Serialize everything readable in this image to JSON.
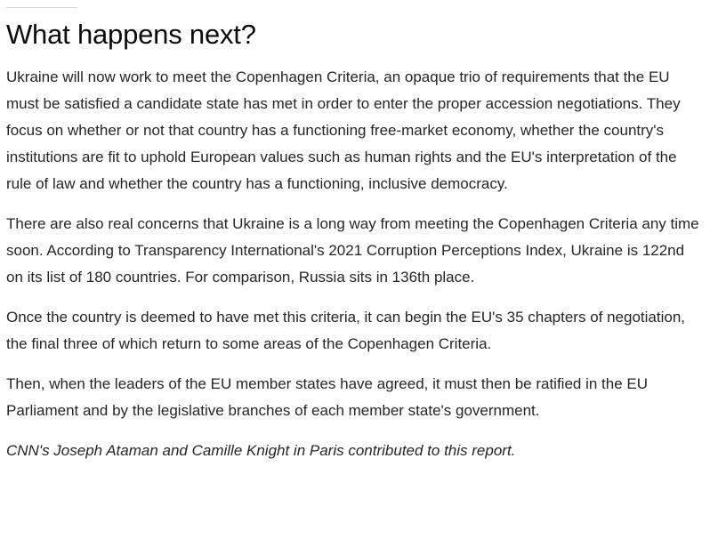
{
  "article": {
    "heading": "What happens next?",
    "paragraphs": [
      "Ukraine will now work to meet the Copenhagen Criteria, an opaque trio of requirements that the EU must be satisfied a candidate state has met in order to enter the proper accession negotiations. They focus on whether or not that country has a functioning free-market economy, whether the country's institutions are fit to uphold European values such as human rights and the EU's interpretation of the rule of law and whether the country has a functioning, inclusive democracy.",
      "There are also real concerns that Ukraine is a long way from meeting the Copenhagen Criteria any time soon. According to Transparency International's 2021 Corruption Perceptions Index, Ukraine is 122nd on its list of 180 countries. For comparison, Russia sits in 136th place.",
      "Once the country is deemed to have met this criteria, it can begin the EU's 35 chapters of negotiation, the final three of which return to some areas of the Copenhagen Criteria.",
      "Then, when the leaders of the EU member states have agreed, it must then be ratified in the EU Parliament and by the legislative branches of each member state's government."
    ],
    "credit": "CNN's Joseph Ataman and Camille Knight in Paris contributed to this report."
  },
  "colors": {
    "text": "#262626",
    "heading": "#0c0c0c",
    "rule": "#d6d6d6",
    "background": "#ffffff"
  }
}
